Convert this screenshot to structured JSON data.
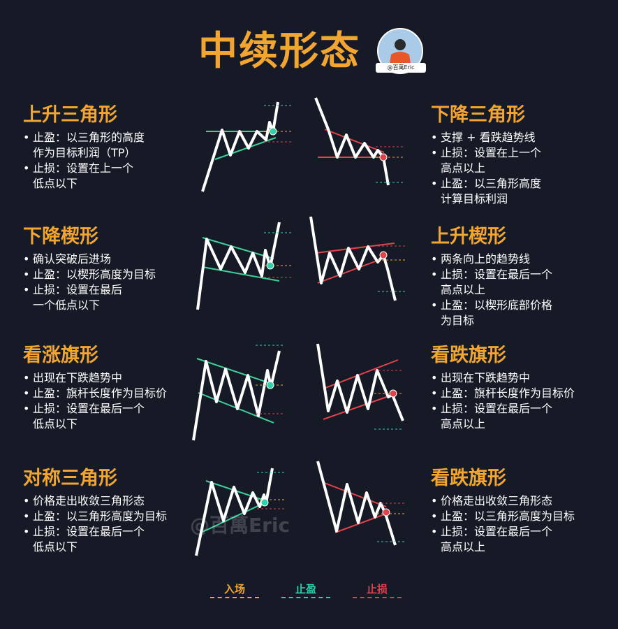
{
  "title": "中续形态",
  "avatar_handle": "@百萬Eric",
  "watermark": "@百萬Eric",
  "colors": {
    "accent": "#f2a531",
    "entry": "#f2a531",
    "take_profit": "#2fd1a8",
    "stop_loss": "#e2434b",
    "bull_line": "#3dd19a",
    "bear_line": "#e2434b"
  },
  "sections": [
    {
      "title": "上升三角形",
      "bullets": [
        "止盈：以三角形的高度\n作为目标利润（TP）",
        "止损：设置在上一个\n低点以下"
      ]
    },
    {
      "title": "下降三角形",
      "bullets": [
        "支撑 + 看跌趋势线",
        "止损：设置在上一个\n高点以上",
        "止盈：以三角形高度\n计算目标利润"
      ]
    },
    {
      "title": "下降楔形",
      "bullets": [
        "确认突破后进场",
        "止盈：以楔形高度为目标",
        "止损：设置在最后\n一个低点以下"
      ]
    },
    {
      "title": "上升楔形",
      "bullets": [
        "两条向上的趋势线",
        "止损：设置在最后一个\n高点以上",
        "止盈：以楔形底部价格\n为目标"
      ]
    },
    {
      "title": "看涨旗形",
      "bullets": [
        "出现在下跌趋势中",
        "止盈：旗杆长度作为目标价",
        "止损：设置在最后一个\n低点以下"
      ]
    },
    {
      "title": "看跌旗形",
      "bullets": [
        "出现在下跌趋势中",
        "止盈：旗杆长度作为目标价",
        "止损：设置在最后一个\n高点以上"
      ]
    },
    {
      "title": "对称三角形",
      "bullets": [
        "价格走出收敛三角形态",
        "止盈：以三角形高度为目标",
        "止损：设置在最后一个\n低点以下"
      ]
    },
    {
      "title": "看跌旗形",
      "bullets": [
        "价格走出收敛三角形态",
        "止盈：以三角形高度为目标",
        "止损：设置在最后一个\n高点以上"
      ]
    }
  ],
  "legend": [
    {
      "label": "入场",
      "color": "#f2a531"
    },
    {
      "label": "止盈",
      "color": "#2fd1a8"
    },
    {
      "label": "止损",
      "color": "#e2434b"
    }
  ]
}
